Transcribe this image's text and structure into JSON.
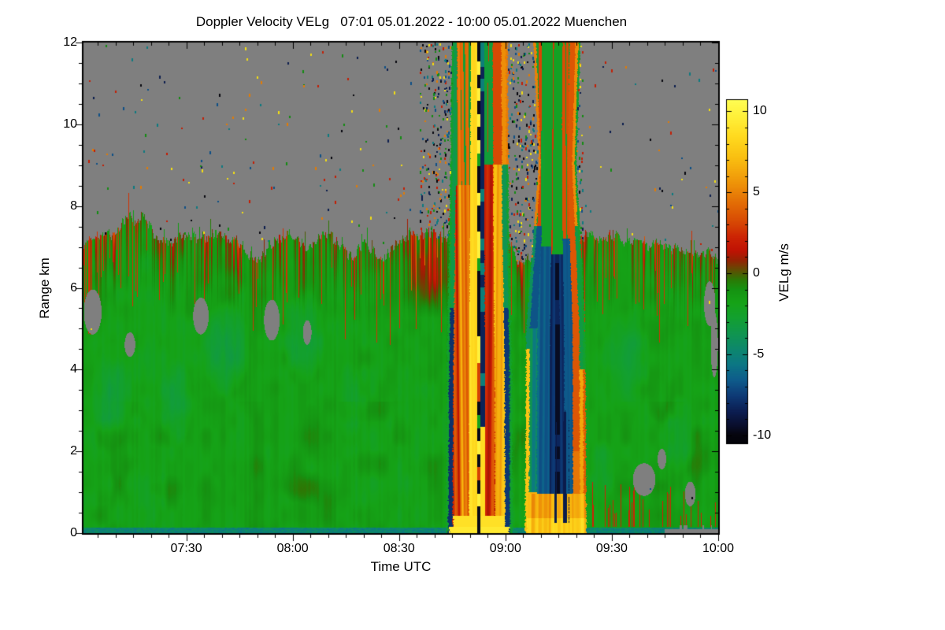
{
  "figure": {
    "background": "#ffffff",
    "no_data_color": "#7f7f7f",
    "frame_color": "#000000"
  },
  "chart_data": {
    "type": "heatmap",
    "title": "Doppler Velocity VELg   07:01 05.01.2022 - 10:00 05.01.2022 Muenchen",
    "xlabel": "Time UTC",
    "ylabel": "Range km",
    "colorbar_label": "VELg m/s",
    "x_range": [
      "07:01",
      "10:00"
    ],
    "x_total_minutes": 179,
    "x_ticks": [
      {
        "label": "07:30",
        "minutes": 29
      },
      {
        "label": "08:00",
        "minutes": 59
      },
      {
        "label": "08:30",
        "minutes": 89
      },
      {
        "label": "09:00",
        "minutes": 119
      },
      {
        "label": "09:30",
        "minutes": 149
      },
      {
        "label": "10:00",
        "minutes": 179
      }
    ],
    "x_minor_tick_minutes": 5,
    "y_range_km": [
      0,
      12
    ],
    "y_ticks": [
      {
        "label": "0",
        "km": 0
      },
      {
        "label": "2",
        "km": 2
      },
      {
        "label": "4",
        "km": 4
      },
      {
        "label": "6",
        "km": 6
      },
      {
        "label": "8",
        "km": 8
      },
      {
        "label": "10",
        "km": 10
      },
      {
        "label": "12",
        "km": 12
      }
    ],
    "y_minor_tick_km": 0.5,
    "colorbar_range": [
      -10,
      10
    ],
    "colorbar_ticks": [
      {
        "label": "10",
        "value": 10
      },
      {
        "label": "5",
        "value": 5
      },
      {
        "label": "0",
        "value": 0
      },
      {
        "label": "-5",
        "value": -5
      },
      {
        "label": "-10",
        "value": -10
      }
    ],
    "colorbar_minor_tick": 1,
    "no_data_color": "#7f7f7f",
    "colormap_stops": [
      [
        -10.6,
        "#030309"
      ],
      [
        -10.0,
        "#06060f"
      ],
      [
        -9.4,
        "#0a0f2e"
      ],
      [
        -8.6,
        "#0c1d50"
      ],
      [
        -7.6,
        "#0e3a76"
      ],
      [
        -6.6,
        "#0e5c8c"
      ],
      [
        -5.6,
        "#0c7884"
      ],
      [
        -4.8,
        "#0d8670"
      ],
      [
        -3.8,
        "#109552"
      ],
      [
        -2.8,
        "#13a032"
      ],
      [
        -1.8,
        "#16a317"
      ],
      [
        -1.0,
        "#159312"
      ],
      [
        -0.4,
        "#2c7a06"
      ],
      [
        0.0,
        "#4f5c04"
      ],
      [
        0.35,
        "#6e4403"
      ],
      [
        0.8,
        "#952303"
      ],
      [
        1.4,
        "#c01304"
      ],
      [
        2.2,
        "#cc2304"
      ],
      [
        3.2,
        "#d84a04"
      ],
      [
        4.4,
        "#e46f06"
      ],
      [
        5.6,
        "#ef9509"
      ],
      [
        7.0,
        "#f9bc10"
      ],
      [
        8.4,
        "#ffd91e"
      ],
      [
        9.6,
        "#ffef38"
      ],
      [
        10.8,
        "#ffff55"
      ]
    ],
    "features": {
      "background_velocity_ms": -1.8,
      "cloud_top_km_points": [
        [
          0,
          7.15
        ],
        [
          5,
          7.3
        ],
        [
          9,
          7.25
        ],
        [
          13,
          7.85
        ],
        [
          15,
          7.6
        ],
        [
          17,
          7.75
        ],
        [
          20,
          7.3
        ],
        [
          24,
          7.0
        ],
        [
          27,
          7.25
        ],
        [
          31,
          7.2
        ],
        [
          35,
          7.3
        ],
        [
          40,
          7.25
        ],
        [
          44,
          7.1
        ],
        [
          47,
          6.75
        ],
        [
          49,
          6.55
        ],
        [
          52,
          7.0
        ],
        [
          55,
          7.2
        ],
        [
          58,
          7.35
        ],
        [
          60,
          7.2
        ],
        [
          63,
          6.95
        ],
        [
          66,
          7.2
        ],
        [
          70,
          7.25
        ],
        [
          73,
          7.0
        ],
        [
          76,
          6.75
        ],
        [
          79,
          7.05
        ],
        [
          82,
          6.8
        ],
        [
          84,
          6.6
        ],
        [
          87,
          7.0
        ],
        [
          90,
          7.2
        ],
        [
          93,
          7.3
        ],
        [
          96,
          7.35
        ],
        [
          99,
          7.3
        ],
        [
          101,
          7.25
        ],
        [
          121,
          7.0
        ],
        [
          122,
          6.65
        ],
        [
          123.5,
          6.6
        ],
        [
          141.5,
          7.3
        ],
        [
          144,
          7.25
        ],
        [
          147,
          7.2
        ],
        [
          150,
          7.25
        ],
        [
          153,
          7.15
        ],
        [
          156,
          7.1
        ],
        [
          159,
          7.05
        ],
        [
          162,
          7.1
        ],
        [
          165,
          7.0
        ],
        [
          168,
          6.95
        ],
        [
          171,
          6.9
        ],
        [
          174,
          6.85
        ],
        [
          177,
          6.8
        ],
        [
          179,
          6.75
        ]
      ],
      "updraft_plume": {
        "start_utc": "08:42",
        "center_utc": "08:52",
        "end_utc": "09:01",
        "max_velocity_ms": 10,
        "description": "full-depth column: dashed black/yellow core, bright yellow-orange curtains, red streaks, dark navy edges, green-teal rim"
      },
      "downdraft_plume": {
        "start_utc": "09:05",
        "center_utc": "09:14",
        "end_utc": "09:22",
        "min_velocity_ms": -10,
        "description": "full-depth column: dark navy core with teal streaks, orange-yellow left band, red right band, orange base with navy fingers, green/red striped top"
      },
      "noise_speckle_zone_utc": [
        "08:36",
        "09:22"
      ],
      "surface_layer": {
        "teal_strip_top_km": 0.13,
        "velocity_ms": -4.5
      },
      "bottom_right_no_data_utc": [
        "09:26",
        "10:00"
      ]
    }
  }
}
